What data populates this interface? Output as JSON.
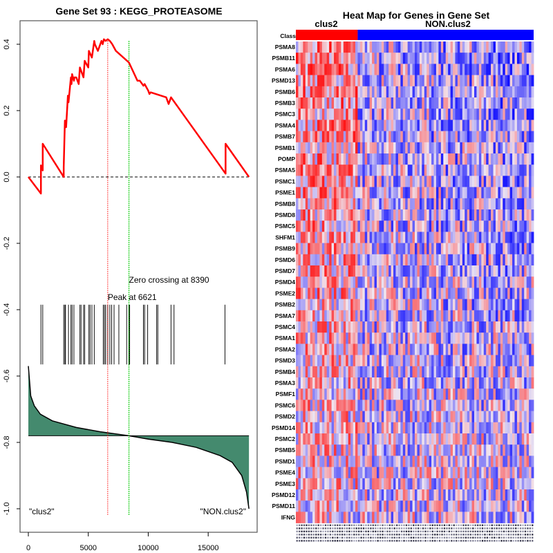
{
  "chart_data": [
    {
      "type": "line",
      "title": "Gene Set  93 : KEGG_PROTEASOME",
      "xlabel": "",
      "ylabel": "",
      "xlim": [
        0,
        18400
      ],
      "ylim": [
        -1.05,
        0.45
      ],
      "x_ticks": [
        0,
        5000,
        10000,
        15000
      ],
      "x_tick_labels": [
        "0",
        "5000",
        "10000",
        "15000"
      ],
      "y_ticks": [
        0.4,
        0.2,
        0.0,
        -0.2,
        -0.4,
        -0.6,
        -0.8,
        -1.0
      ],
      "y_tick_labels": [
        "0.4",
        "0.2",
        "0.0",
        "-0.2",
        "-0.4",
        "-0.6",
        "-0.8",
        "-1.0"
      ],
      "grid": false,
      "colors": {
        "es_line": "#ff0000",
        "peak_line": "#ff0000",
        "zero_cross_line": "#00cc00",
        "ranked_fill": "#448a6e",
        "baseline": "#000000"
      },
      "running_es": {
        "x": [
          0,
          1050,
          1050,
          1200,
          1200,
          2950,
          2950,
          3050,
          3150,
          3300,
          3350,
          3550,
          3600,
          3650,
          3800,
          3850,
          4000,
          4200,
          4300,
          4600,
          4700,
          5000,
          5050,
          5300,
          5500,
          5550,
          5800,
          6100,
          6200,
          6300,
          6450,
          6621,
          6800,
          7000,
          7300,
          8390,
          9100,
          9300,
          9600,
          9700,
          10000,
          10100,
          10200,
          11500,
          11700,
          11900,
          16450,
          16450,
          18400
        ],
        "y": [
          0.0,
          -0.05,
          0.035,
          0.02,
          0.1,
          0.0,
          0.03,
          0.17,
          0.15,
          0.245,
          0.225,
          0.3,
          0.28,
          0.31,
          0.29,
          0.3,
          0.3,
          0.28,
          0.33,
          0.3,
          0.35,
          0.33,
          0.38,
          0.36,
          0.41,
          0.4,
          0.38,
          0.41,
          0.4,
          0.415,
          0.41,
          0.415,
          0.41,
          0.4,
          0.38,
          0.345,
          0.29,
          0.29,
          0.275,
          0.28,
          0.26,
          0.25,
          0.255,
          0.24,
          0.22,
          0.24,
          0.01,
          0.1,
          0.0
        ]
      },
      "hits_x": [
        1050,
        1200,
        2950,
        3050,
        3100,
        3350,
        3550,
        3650,
        3800,
        4300,
        4400,
        4600,
        4700,
        5050,
        5150,
        5300,
        5500,
        6250,
        6350,
        6450,
        6621,
        6800,
        6950,
        7150,
        7550,
        8200,
        8390,
        8450,
        9600,
        9700,
        9950,
        10700,
        10800,
        11900,
        12150,
        16400
      ],
      "ranked_metric": {
        "x": [
          0,
          200,
          500,
          1000,
          2000,
          4000,
          6000,
          8390,
          10000,
          12000,
          14000,
          16000,
          17000,
          17800,
          18200,
          18400
        ],
        "y": [
          -0.57,
          -0.66,
          -0.69,
          -0.715,
          -0.735,
          -0.755,
          -0.768,
          -0.78,
          -0.79,
          -0.8,
          -0.815,
          -0.84,
          -0.86,
          -0.9,
          -0.95,
          -1.0
        ]
      },
      "ranked_baseline": -0.78,
      "hline_dashed": 0.0,
      "annotations": {
        "peak": {
          "x": 6621,
          "label": "Peak at 6621"
        },
        "zero_crossing": {
          "x": 8390,
          "label": "Zero crossing at 8390"
        },
        "left_label": "\"clus2\"",
        "right_label": "\"NON.clus2\""
      }
    },
    {
      "type": "heatmap",
      "title": "Heat Map for Genes in Gene Set",
      "class_row_label": "Class",
      "groups": [
        {
          "name": "clus2",
          "color": "#ff0000",
          "fraction": 0.26
        },
        {
          "name": "NON.clus2",
          "color": "#0000ff",
          "fraction": 0.74
        }
      ],
      "rows": [
        "PSMA8",
        "PSMB11",
        "PSMA6",
        "PSMD13",
        "PSMB6",
        "PSMB3",
        "PSMC3",
        "PSMA4",
        "PSMB7",
        "PSMB1",
        "POMP",
        "PSMA5",
        "PSMC1",
        "PSME1",
        "PSMB8",
        "PSMD8",
        "PSMC5",
        "SHFM1",
        "PSMB9",
        "PSMD6",
        "PSMD7",
        "PSMD4",
        "PSME2",
        "PSMB2",
        "PSMA7",
        "PSMC4",
        "PSMA1",
        "PSMA2",
        "PSMD3",
        "PSMB4",
        "PSMA3",
        "PSMF1",
        "PSMC6",
        "PSMD2",
        "PSMD14",
        "PSMC2",
        "PSMB5",
        "PSMD1",
        "PSME4",
        "PSME3",
        "PSMD12",
        "PSMD11",
        "IFNG"
      ],
      "n_columns": 100,
      "color_scale": {
        "low": "#0000ff",
        "mid": "#f0e6f0",
        "high": "#ff0000"
      },
      "trend": "clus2 columns predominantly red/pink (high); NON.clus2 columns predominantly blue/lavender (low), with decreasing contrast toward bottom rows"
    }
  ]
}
